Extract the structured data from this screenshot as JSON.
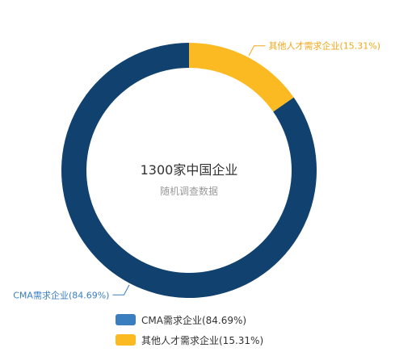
{
  "chart_data": {
    "type": "pie",
    "donut": true,
    "center_title": "1300家中国企业",
    "center_subtitle": "随机调查数据",
    "slices": [
      {
        "name": "CMA需求企业",
        "value": 84.69,
        "label": "CMA需求企业(84.69%)",
        "color": "#11426f"
      },
      {
        "name": "其他人才需求企业",
        "value": 15.31,
        "label": "其他人才需求企业(15.31%)",
        "color": "#fbba21"
      }
    ],
    "legend": {
      "position": "bottom-center",
      "items": [
        {
          "label": "CMA需求企业(84.69%)",
          "color": "#3a7ec0"
        },
        {
          "label": "其他人才需求企业(15.31%)",
          "color": "#fbba21"
        }
      ]
    },
    "label_colors": {
      "CMA需求企业": "#3a7ec0",
      "其他人才需求企业": "#f0a818"
    }
  }
}
